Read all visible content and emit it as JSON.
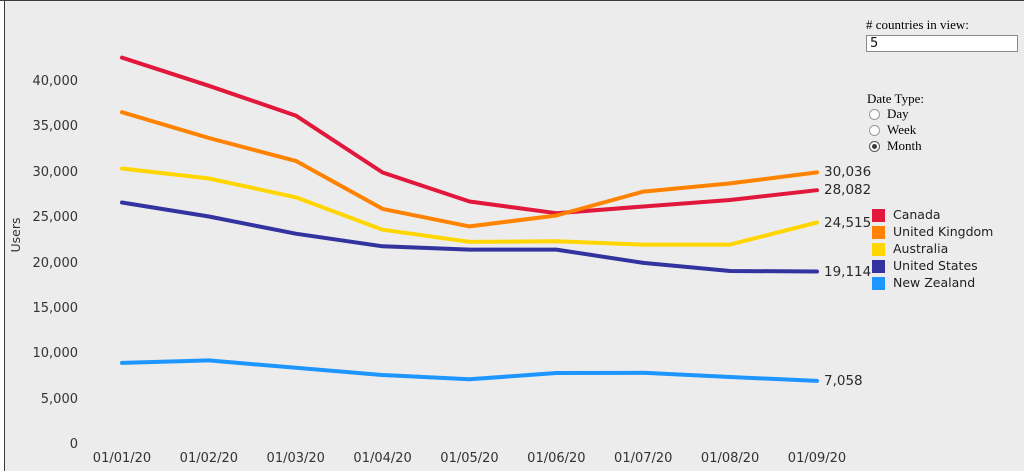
{
  "frame": {
    "background_color": "#ececec",
    "border_color": "#3c3c3c"
  },
  "controls": {
    "countries_label": "# countries in view:",
    "countries_value": "5",
    "date_type_label": "Date Type:",
    "date_type_options": [
      {
        "label": "Day",
        "selected": false
      },
      {
        "label": "Week",
        "selected": false
      },
      {
        "label": "Month",
        "selected": true
      }
    ]
  },
  "chart_data": {
    "type": "line",
    "title": "",
    "xlabel": "",
    "ylabel": "Users",
    "x": [
      "01/01/20",
      "01/02/20",
      "01/03/20",
      "01/04/20",
      "01/05/20",
      "01/06/20",
      "01/07/20",
      "01/08/20",
      "01/09/20"
    ],
    "yticks": [
      0,
      5000,
      10000,
      15000,
      20000,
      25000,
      30000,
      35000,
      40000
    ],
    "ytick_labels": [
      "0",
      "5,000",
      "10,000",
      "15,000",
      "20,000",
      "25,000",
      "30,000",
      "35,000",
      "40,000"
    ],
    "ylim": [
      0,
      46000
    ],
    "grid": false,
    "legend_position": "right",
    "series": [
      {
        "name": "Canada",
        "color": "#e2173c",
        "values": [
          42690,
          39580,
          36300,
          30030,
          26830,
          25540,
          26280,
          27000,
          28082
        ],
        "end_label": "28,082"
      },
      {
        "name": "United Kingdom",
        "color": "#ff8300",
        "values": [
          36670,
          33830,
          31310,
          26020,
          24090,
          25290,
          27920,
          28830,
          30036
        ],
        "end_label": "30,036"
      },
      {
        "name": "Australia",
        "color": "#ffd600",
        "values": [
          30470,
          29370,
          27300,
          23720,
          22380,
          22450,
          22080,
          22080,
          24515
        ],
        "end_label": "24,515"
      },
      {
        "name": "United States",
        "color": "#3333a0",
        "values": [
          26720,
          25180,
          23280,
          21900,
          21530,
          21530,
          20070,
          19170,
          19114
        ],
        "end_label": "19,114"
      },
      {
        "name": "New Zealand",
        "color": "#1e96ff",
        "values": [
          9050,
          9320,
          8510,
          7710,
          7240,
          7930,
          7960,
          7490,
          7058
        ],
        "end_label": "7,058"
      }
    ]
  }
}
